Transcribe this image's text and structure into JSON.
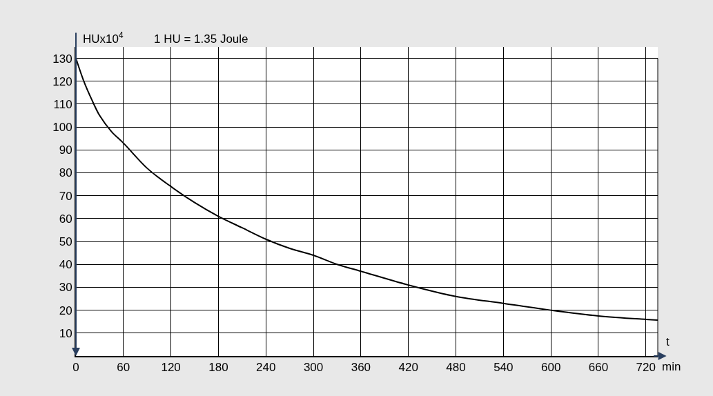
{
  "chart_data": {
    "type": "line",
    "ylabel": "HUx10$^{4}$",
    "xlabel": "min",
    "annotations": [
      "1 HU = 1.35 Joule",
      "t"
    ],
    "x": [
      0,
      10,
      20,
      30,
      45,
      60,
      90,
      120,
      150,
      180,
      210,
      240,
      270,
      300,
      330,
      360,
      420,
      480,
      540,
      600,
      660,
      720,
      735
    ],
    "series": [
      {
        "color": "#000000",
        "values": [
          130,
          120,
          112,
          105,
          98,
          93,
          82,
          74,
          67,
          61,
          56,
          51,
          47,
          44,
          40,
          37,
          31,
          26,
          23,
          20,
          17.5,
          16,
          15.7
        ]
      }
    ],
    "xlim": [
      0,
      735
    ],
    "ylim": [
      0,
      135
    ],
    "xticks": [
      0,
      60,
      120,
      180,
      240,
      300,
      360,
      420,
      480,
      540,
      600,
      660,
      720
    ],
    "yticks": [
      10,
      20,
      30,
      40,
      50,
      60,
      70,
      80,
      90,
      100,
      110,
      120,
      130
    ],
    "grid": true,
    "legend": false,
    "marker": "none",
    "line_style": "solid"
  }
}
